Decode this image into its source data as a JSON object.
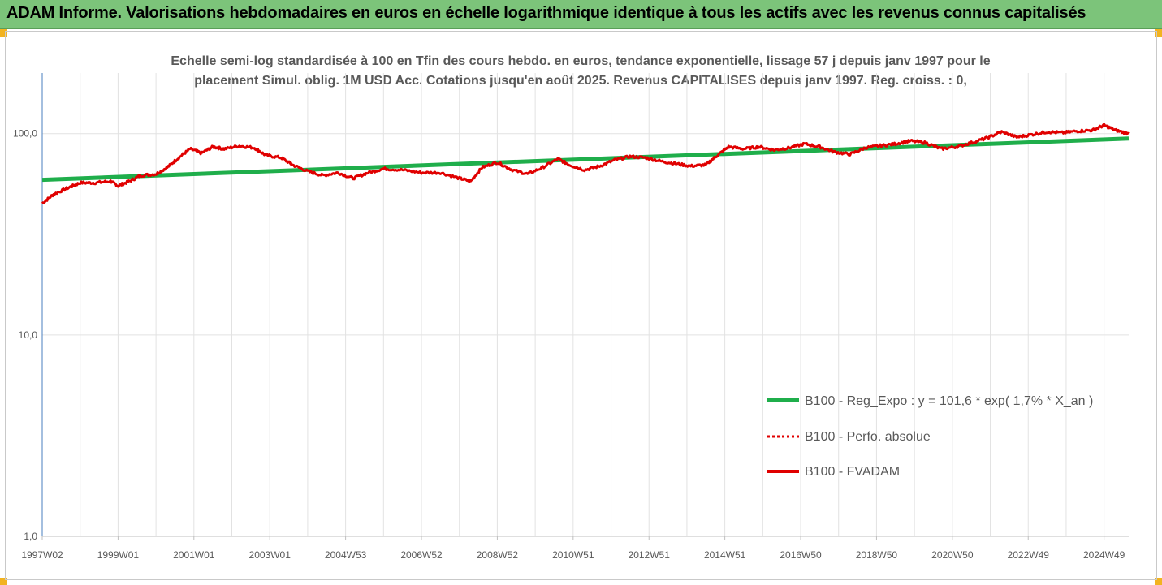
{
  "banner": {
    "title": "ADAM Informe. Valorisations hebdomadaires en euros en échelle logarithmique identique à tous les actifs avec les revenus connus capitalisés"
  },
  "colors": {
    "banner_bg": "#7cc47a",
    "corner": "#f2b320",
    "trend_line": "#1fae4b",
    "perf_line": "#e00000",
    "grid": "#e2e2e2",
    "text": "#595959"
  },
  "chart_data": {
    "type": "line",
    "subtitle_line1": "Echelle semi-log standardisée à 100 en Tfin des cours hebdo. en euros, tendance exponentielle, lissage 57 j depuis janv 1997 pour le",
    "subtitle_line2": "placement Simul. oblig. 1M USD Acc. Cotations jusqu'en août 2025. Revenus CAPITALISES depuis janv 1997. Reg. croiss. : 0,",
    "y_scale": "log",
    "ylim": [
      1,
      200
    ],
    "y_ticks": [
      {
        "value": 1,
        "label": "1,0"
      },
      {
        "value": 10,
        "label": "10,0"
      },
      {
        "value": 100,
        "label": "100,0"
      }
    ],
    "xlim": [
      1997.0,
      2025.65
    ],
    "x_ticks": [
      {
        "x": 1997.0,
        "label": "1997W02"
      },
      {
        "x": 1999.0,
        "label": "1999W01"
      },
      {
        "x": 2001.0,
        "label": "2001W01"
      },
      {
        "x": 2003.0,
        "label": "2003W01"
      },
      {
        "x": 2005.0,
        "label": "2004W53"
      },
      {
        "x": 2007.0,
        "label": "2006W52"
      },
      {
        "x": 2009.0,
        "label": "2008W52"
      },
      {
        "x": 2011.0,
        "label": "2010W51"
      },
      {
        "x": 2013.0,
        "label": "2012W51"
      },
      {
        "x": 2015.0,
        "label": "2014W51"
      },
      {
        "x": 2017.0,
        "label": "2016W50"
      },
      {
        "x": 2019.0,
        "label": "2018W50"
      },
      {
        "x": 2021.0,
        "label": "2020W50"
      },
      {
        "x": 2023.0,
        "label": "2022W49"
      },
      {
        "x": 2025.0,
        "label": "2024W49"
      }
    ],
    "grid": "vertical",
    "legend_position": "right",
    "series": [
      {
        "name": "B100 - Reg_Expo : y = 101,6 * exp( 1,7% *  X_an )",
        "style": "solid-green",
        "x": [
          1997.0,
          2025.65
        ],
        "y": [
          59.0,
          94.5
        ]
      },
      {
        "name": "B100 - Perfo. absolue",
        "style": "dotted-red",
        "x": [],
        "y": []
      },
      {
        "name": "B100 - FVADAM",
        "style": "solid-red",
        "x": [
          1997.0,
          1997.3,
          1997.7,
          1998.0,
          1998.4,
          1998.8,
          1999.0,
          1999.3,
          1999.6,
          2000.0,
          2000.3,
          2000.6,
          2000.9,
          2001.2,
          2001.5,
          2001.8,
          2002.2,
          2002.6,
          2002.9,
          2003.3,
          2003.6,
          2004.0,
          2004.4,
          2004.8,
          2005.2,
          2005.6,
          2006.0,
          2006.5,
          2007.0,
          2007.5,
          2008.0,
          2008.3,
          2008.6,
          2009.0,
          2009.4,
          2009.8,
          2010.2,
          2010.6,
          2010.9,
          2011.3,
          2011.7,
          2012.1,
          2012.5,
          2012.9,
          2013.3,
          2013.7,
          2014.1,
          2014.5,
          2014.8,
          2015.1,
          2015.5,
          2015.9,
          2016.3,
          2016.7,
          2017.1,
          2017.5,
          2017.9,
          2018.3,
          2018.7,
          2019.1,
          2019.5,
          2019.9,
          2020.3,
          2020.7,
          2021.1,
          2021.5,
          2021.9,
          2022.3,
          2022.7,
          2023.1,
          2023.5,
          2023.9,
          2024.3,
          2024.7,
          2025.0,
          2025.3,
          2025.65
        ],
        "y": [
          45.0,
          50.0,
          54.0,
          57.0,
          57.0,
          58.0,
          55.0,
          58.0,
          62.0,
          63.0,
          68.0,
          76.0,
          84.0,
          80.0,
          86.0,
          84.0,
          87.0,
          85.0,
          78.0,
          76.0,
          70.0,
          65.0,
          62.0,
          64.0,
          60.0,
          64.0,
          67.0,
          66.0,
          64.0,
          64.0,
          60.0,
          58.0,
          68.0,
          72.0,
          66.0,
          63.0,
          68.0,
          75.0,
          70.0,
          66.0,
          69.0,
          74.0,
          77.0,
          76.0,
          73.0,
          71.0,
          69.0,
          70.0,
          78.0,
          86.0,
          84.0,
          86.0,
          83.0,
          85.0,
          89.0,
          86.0,
          81.0,
          79.0,
          85.0,
          87.0,
          89.0,
          92.0,
          90.0,
          84.0,
          86.0,
          90.0,
          95.0,
          102.0,
          96.0,
          99.0,
          102.0,
          101.0,
          103.0,
          104.0,
          110.0,
          104.0,
          100.0
        ]
      }
    ]
  }
}
